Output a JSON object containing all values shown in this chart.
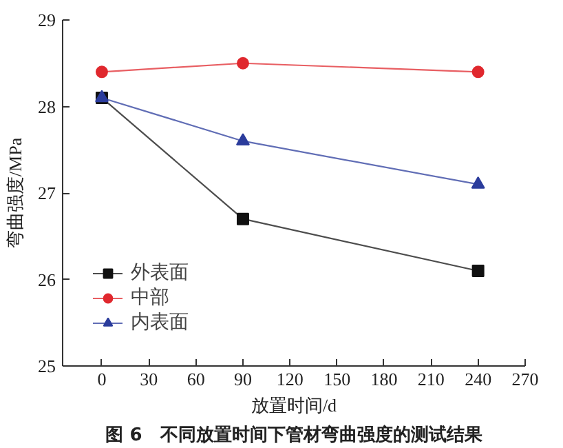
{
  "chart_data": {
    "type": "line",
    "xlabel": "放置时间/d",
    "ylabel": "弯曲强度/MPa",
    "annotations": [
      "图 6　不同放置时间下管材弯曲强度的测试结果"
    ],
    "x": [
      0,
      90,
      240
    ],
    "xlim": [
      -25,
      270
    ],
    "xticks": [
      0,
      30,
      60,
      90,
      120,
      150,
      180,
      210,
      240,
      270
    ],
    "ylim": [
      25,
      29
    ],
    "yticks": [
      25,
      26,
      27,
      28,
      29
    ],
    "legend": "bottom left",
    "grid": false,
    "line_style": "solid",
    "series": [
      {
        "name": "外表面",
        "color": "#111111",
        "marker": "square",
        "values": [
          28.1,
          26.7,
          26.1
        ]
      },
      {
        "name": "中部",
        "color": "#e0282e",
        "marker": "circle",
        "values": [
          28.4,
          28.5,
          28.4
        ]
      },
      {
        "name": "内表面",
        "color": "#2b3c9c",
        "marker": "triangle",
        "values": [
          28.1,
          27.6,
          27.1
        ]
      }
    ]
  }
}
